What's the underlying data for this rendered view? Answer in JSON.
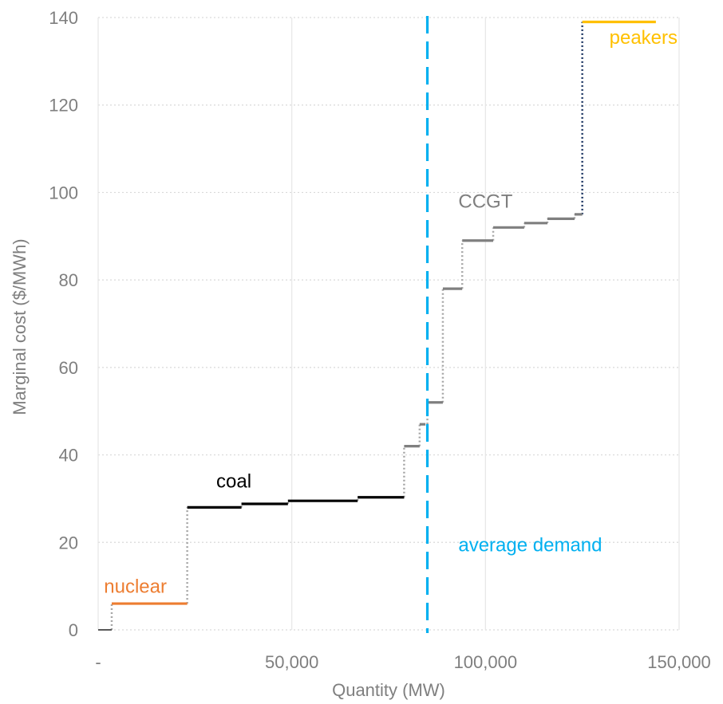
{
  "chart_data": {
    "type": "line",
    "subtype": "step / merit-order supply curve",
    "title": "",
    "xlabel": "Quantity (MW)",
    "ylabel": "Marginal cost ($/MWh)",
    "xlim": [
      0,
      150000
    ],
    "ylim": [
      0,
      140
    ],
    "x_ticks": [
      0,
      50000,
      100000,
      150000
    ],
    "x_tick_labels": [
      "-",
      "50,000",
      "100,000",
      "150,000"
    ],
    "y_ticks": [
      0,
      20,
      40,
      60,
      80,
      100,
      120,
      140
    ],
    "y_tick_labels": [
      "0",
      "20",
      "40",
      "60",
      "80",
      "100",
      "120",
      "140"
    ],
    "grid": true,
    "series": [
      {
        "name": "nuclear",
        "color": "#ed7d31",
        "segments": [
          {
            "x_start": 3500,
            "x_end": 23000,
            "y": 6
          }
        ]
      },
      {
        "name": "coal",
        "color": "#000000",
        "segments": [
          {
            "x_start": 23000,
            "x_end": 37000,
            "y": 28
          },
          {
            "x_start": 37000,
            "x_end": 49000,
            "y": 28.8
          },
          {
            "x_start": 49000,
            "x_end": 67000,
            "y": 29.5
          },
          {
            "x_start": 67000,
            "x_end": 79000,
            "y": 30.3
          }
        ]
      },
      {
        "name": "CCGT",
        "color": "#7f7f7f",
        "segments": [
          {
            "x_start": 79000,
            "x_end": 83000,
            "y": 42
          },
          {
            "x_start": 83000,
            "x_end": 84500,
            "y": 47
          },
          {
            "x_start": 85000,
            "x_end": 89000,
            "y": 52
          },
          {
            "x_start": 89000,
            "x_end": 94000,
            "y": 78
          },
          {
            "x_start": 94000,
            "x_end": 102000,
            "y": 89
          },
          {
            "x_start": 102000,
            "x_end": 110000,
            "y": 92
          },
          {
            "x_start": 110000,
            "x_end": 116000,
            "y": 93
          },
          {
            "x_start": 116000,
            "x_end": 123000,
            "y": 94
          },
          {
            "x_start": 123000,
            "x_end": 125000,
            "y": 95
          }
        ]
      },
      {
        "name": "peakers",
        "color": "#ffc000",
        "segments": [
          {
            "x_start": 125000,
            "x_end": 144000,
            "y": 139
          }
        ]
      }
    ],
    "zero_segment": {
      "x_start": 0,
      "x_end": 3500,
      "y": 0,
      "color": "#595959"
    },
    "riser_color": "#a6a6a6",
    "peaker_riser_color": "#1f3864",
    "vertical_reference": {
      "x": 85000,
      "label": "average demand",
      "color": "#00b0f0"
    },
    "annotations": [
      {
        "text": "nuclear",
        "x": 1500,
        "y": 8.5,
        "color": "#ed7d31"
      },
      {
        "text": "coal",
        "x": 30500,
        "y": 32.5,
        "color": "#000000"
      },
      {
        "text": "CCGT",
        "x": 93000,
        "y": 96.5,
        "color": "#7f7f7f"
      },
      {
        "text": "peakers",
        "x": 132000,
        "y": 134,
        "color": "#ffc000"
      },
      {
        "text": "average demand",
        "x": 93000,
        "y": 18,
        "color": "#00b0f0"
      }
    ]
  }
}
